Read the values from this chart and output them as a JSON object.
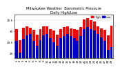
{
  "title": "Milwaukee Weather  Barometric Pressure\nDaily High/Low",
  "title_fontsize": 3.8,
  "days": [
    1,
    2,
    3,
    4,
    5,
    6,
    7,
    8,
    9,
    10,
    11,
    12,
    13,
    14,
    15,
    16,
    17,
    18,
    19,
    20,
    21,
    22,
    23,
    24,
    25,
    26,
    27,
    28,
    29
  ],
  "highs": [
    30.1,
    29.6,
    30.15,
    30.2,
    30.15,
    30.05,
    29.85,
    30.1,
    30.2,
    30.22,
    30.1,
    30.02,
    29.85,
    30.1,
    30.18,
    30.22,
    30.12,
    30.08,
    30.05,
    30.18,
    30.52,
    30.58,
    30.48,
    30.42,
    30.22,
    30.12,
    30.05,
    29.82,
    30.25
  ],
  "lows": [
    29.55,
    29.05,
    29.65,
    29.82,
    29.88,
    29.55,
    29.35,
    29.58,
    29.82,
    29.88,
    29.68,
    29.5,
    29.35,
    29.68,
    29.78,
    29.88,
    29.78,
    29.68,
    29.55,
    29.78,
    30.08,
    30.18,
    30.08,
    30.02,
    29.88,
    29.72,
    29.55,
    29.15,
    29.28
  ],
  "high_color": "#ff0000",
  "low_color": "#0000cc",
  "ylim_min": 28.8,
  "ylim_max": 30.75,
  "yticks": [
    29.0,
    29.5,
    30.0,
    30.5
  ],
  "ytick_labels": [
    "29",
    "29.5",
    "30",
    "30.5"
  ],
  "bg_color": "#ffffff",
  "legend_high": "High",
  "legend_low": "Low",
  "bar_width": 0.8,
  "tick_fontsize": 3.0,
  "legend_fontsize": 3.2,
  "xlabel_fontsize": 3.0
}
